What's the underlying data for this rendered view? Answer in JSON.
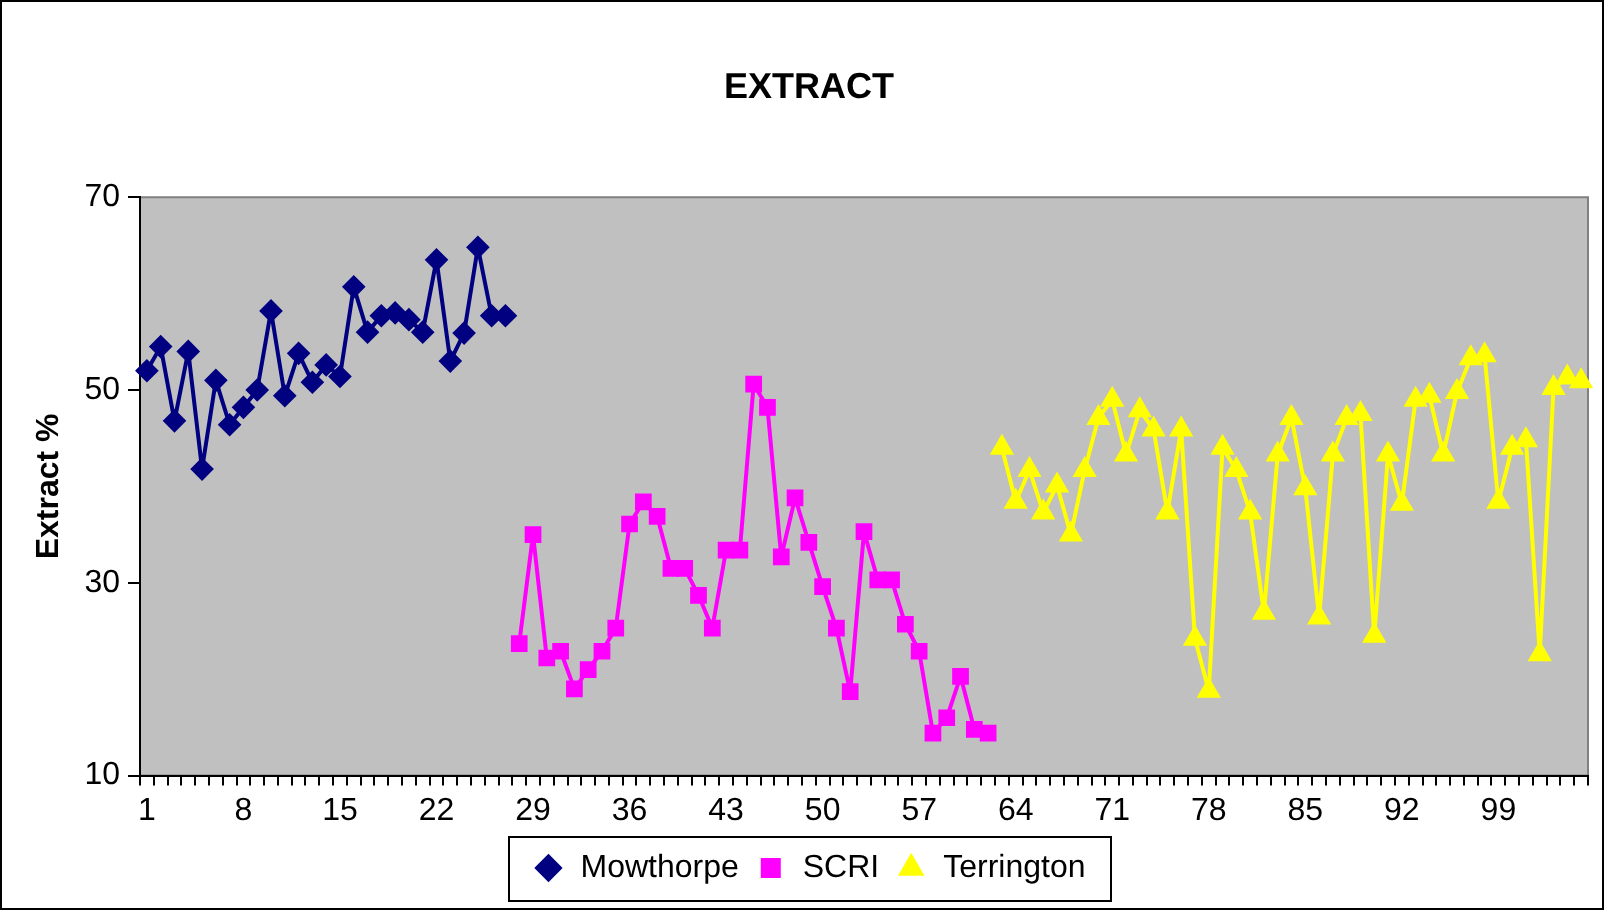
{
  "chart_data": {
    "type": "line",
    "title": "EXTRACT",
    "ylabel": "Extract %",
    "categories": [
      "1",
      null,
      null,
      null,
      null,
      null,
      null,
      "8",
      null,
      null,
      null,
      null,
      null,
      null,
      "15",
      null,
      null,
      null,
      null,
      null,
      null,
      "22",
      null,
      null,
      null,
      null,
      null,
      null,
      "29",
      null,
      null,
      null,
      null,
      null,
      null,
      "36",
      null,
      null,
      null,
      null,
      null,
      null,
      "43",
      null,
      null,
      null,
      null,
      null,
      null,
      "50",
      null,
      null,
      null,
      null,
      null,
      null,
      "57",
      null,
      null,
      null,
      null,
      null,
      null,
      "64",
      null,
      null,
      null,
      null,
      null,
      null,
      "71",
      null,
      null,
      null,
      null,
      null,
      null,
      "78",
      null,
      null,
      null,
      null,
      null,
      null,
      "85",
      null,
      null,
      null,
      null,
      null,
      null,
      "92",
      null,
      null,
      null,
      null,
      null,
      null,
      "99",
      null,
      null,
      null,
      null,
      null,
      null
    ],
    "series": [
      {
        "name": "Mowthorpe",
        "color": "#000080",
        "marker": "diamond",
        "values": [
          52,
          54.5,
          46.8,
          54,
          41.8,
          51,
          46.4,
          48.2,
          50,
          58.2,
          49.4,
          53.8,
          50.8,
          52.6,
          51.4,
          60.7,
          56,
          57.7,
          58,
          57.3,
          56,
          63.5,
          53,
          55.9,
          64.8,
          57.7,
          57.7,
          null,
          null,
          null,
          null,
          null,
          null,
          null,
          null,
          null,
          null,
          null,
          null,
          null,
          null,
          null,
          null,
          null,
          null,
          null,
          null,
          null,
          null,
          null,
          null,
          null,
          null,
          null,
          null,
          null,
          null,
          null,
          null,
          null,
          null,
          null,
          null,
          null,
          null,
          null,
          null,
          null,
          null,
          null,
          null,
          null,
          null,
          null,
          null,
          null,
          null,
          null,
          null,
          null,
          null,
          null,
          null,
          null,
          null,
          null,
          null,
          null,
          null,
          null,
          null,
          null,
          null,
          null,
          null,
          null,
          null,
          null,
          null,
          null,
          null,
          null,
          null,
          null,
          null
        ]
      },
      {
        "name": "SCRI",
        "color": "#ff00ff",
        "marker": "square",
        "values": [
          null,
          null,
          null,
          null,
          null,
          null,
          null,
          null,
          null,
          null,
          null,
          null,
          null,
          null,
          null,
          null,
          null,
          null,
          null,
          null,
          null,
          null,
          null,
          null,
          null,
          null,
          null,
          23.7,
          35,
          22.2,
          22.9,
          19,
          21,
          22.9,
          25.3,
          36.1,
          38.4,
          36.9,
          31.5,
          31.5,
          28.7,
          25.3,
          33.4,
          33.4,
          50.6,
          48.2,
          32.7,
          38.8,
          34.2,
          29.6,
          25.3,
          18.7,
          35.3,
          30.3,
          30.3,
          25.7,
          22.9,
          14.4,
          16,
          20.3,
          14.8,
          14.4,
          null,
          null,
          null,
          null,
          null,
          null,
          null,
          null,
          null,
          null,
          null,
          null,
          null,
          null,
          null,
          null,
          null,
          null,
          null,
          null,
          null,
          null,
          null,
          null,
          null,
          null,
          null,
          null,
          null,
          null,
          null,
          null,
          null,
          null,
          null,
          null,
          null,
          null,
          null,
          null,
          null,
          null,
          null
        ]
      },
      {
        "name": "Terrington",
        "color": "#ffff00",
        "marker": "triangle",
        "values": [
          null,
          null,
          null,
          null,
          null,
          null,
          null,
          null,
          null,
          null,
          null,
          null,
          null,
          null,
          null,
          null,
          null,
          null,
          null,
          null,
          null,
          null,
          null,
          null,
          null,
          null,
          null,
          null,
          null,
          null,
          null,
          null,
          null,
          null,
          null,
          null,
          null,
          null,
          null,
          null,
          null,
          null,
          null,
          null,
          null,
          null,
          null,
          null,
          null,
          null,
          null,
          null,
          null,
          null,
          null,
          null,
          null,
          null,
          null,
          null,
          null,
          null,
          44,
          38.4,
          41.7,
          37.3,
          40.1,
          35,
          41.7,
          47.1,
          49,
          43.3,
          47.9,
          45.9,
          37.3,
          45.9,
          24.2,
          18.8,
          44,
          41.7,
          37.3,
          26.9,
          43.3,
          47.1,
          39.8,
          26.4,
          43.3,
          47.1,
          47.5,
          24.5,
          43.3,
          38.2,
          49,
          49.4,
          43.3,
          49.8,
          53.3,
          53.6,
          38.4,
          44,
          44.8,
          22.6,
          50.2,
          51.3,
          50.9
        ]
      }
    ],
    "ylim": [
      10,
      70
    ],
    "yticks": [
      10,
      30,
      50,
      70
    ],
    "grid": false,
    "legend": "bottom"
  }
}
